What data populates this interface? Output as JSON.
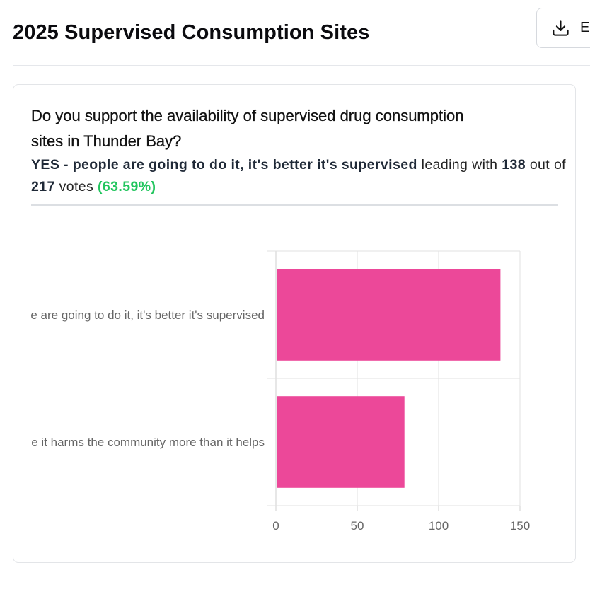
{
  "header": {
    "title": "2025 Supervised Consumption Sites",
    "export_label": "E"
  },
  "poll": {
    "question": "Do you support the availability of supervised drug consumption sites in Thunder Bay?",
    "leading_option": "YES - people are going to do it, it's better it's supervised",
    "leading_text": "leading with",
    "leading_votes": "138",
    "out_of_text": "out of",
    "total_votes": "217",
    "votes_text": "votes",
    "leading_pct": "(63.59%)"
  },
  "chart_data": {
    "type": "bar",
    "orientation": "horizontal",
    "categories": [
      "YES - people are going to do it, it's better it's supervised",
      "NO - I believe it harms the community more than it helps"
    ],
    "values": [
      138,
      79
    ],
    "xlim": [
      0,
      150
    ],
    "xticks": [
      0,
      50,
      100,
      150
    ],
    "grid": true,
    "bar_color": "#ec4899"
  }
}
